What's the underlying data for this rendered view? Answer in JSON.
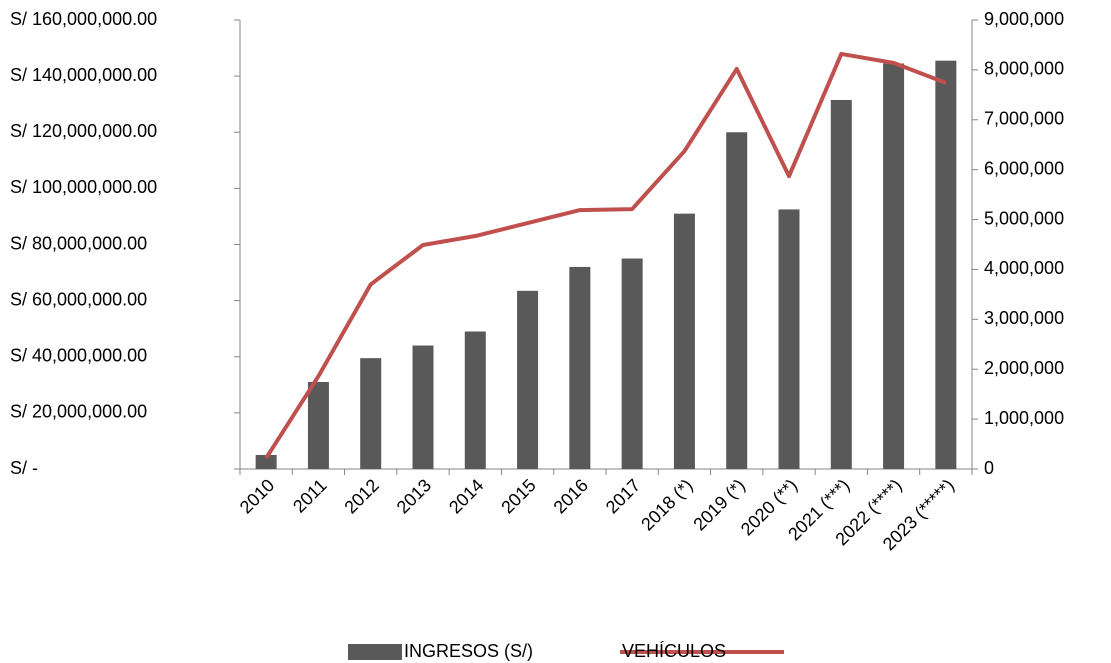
{
  "chart_data": {
    "type": "bar_line",
    "categories": [
      "2010",
      "2011",
      "2012",
      "2013",
      "2014",
      "2015",
      "2016",
      "2017",
      "2018 (*)",
      "2019 (*)",
      "2020 (**)",
      "2021 (***)",
      "2022 (****)",
      "2023 (*****)"
    ],
    "series": [
      {
        "name": "INGRESOS (S/)",
        "type": "bar",
        "color": "#595959",
        "axis": "y",
        "values": [
          5000000,
          31000000,
          39500000,
          44000000,
          49000000,
          63500000,
          72000000,
          75000000,
          91000000,
          120000000,
          92500000,
          131500000,
          144500000,
          145500000
        ]
      },
      {
        "name": "VEHÍCULOS",
        "type": "line",
        "color": "#c0504d",
        "axis": "y2",
        "values": [
          220000,
          1860000,
          3700000,
          4490000,
          4670000,
          4930000,
          5190000,
          5210000,
          6370000,
          8020000,
          5870000,
          8320000,
          8140000,
          7740000
        ]
      }
    ],
    "ylim": [
      0,
      160000000
    ],
    "yticks": [
      {
        "value": 0,
        "label": "S/  -"
      },
      {
        "value": 20000000,
        "label": "S/  20,000,000.00"
      },
      {
        "value": 40000000,
        "label": "S/  40,000,000.00"
      },
      {
        "value": 60000000,
        "label": "S/  60,000,000.00"
      },
      {
        "value": 80000000,
        "label": "S/  80,000,000.00"
      },
      {
        "value": 100000000,
        "label": "S/  100,000,000.00"
      },
      {
        "value": 120000000,
        "label": "S/  120,000,000.00"
      },
      {
        "value": 140000000,
        "label": "S/  140,000,000.00"
      },
      {
        "value": 160000000,
        "label": "S/  160,000,000.00"
      }
    ],
    "y2lim": [
      0,
      9000000
    ],
    "y2ticks": [
      0,
      {
        "value": 1000000,
        "label": "1,000,000"
      },
      {
        "value": 2000000,
        "label": "2,000,000"
      },
      {
        "value": 3000000,
        "label": "3,000,000"
      },
      {
        "value": 4000000,
        "label": "4,000,000"
      },
      {
        "value": 5000000,
        "label": "5,000,000"
      },
      {
        "value": 6000000,
        "label": "6,000,000"
      },
      {
        "value": 7000000,
        "label": "7,000,000"
      },
      {
        "value": 8000000,
        "label": "8,000,000"
      },
      {
        "value": 9000000,
        "label": "9,000,000"
      }
    ],
    "legend": "bottom"
  }
}
